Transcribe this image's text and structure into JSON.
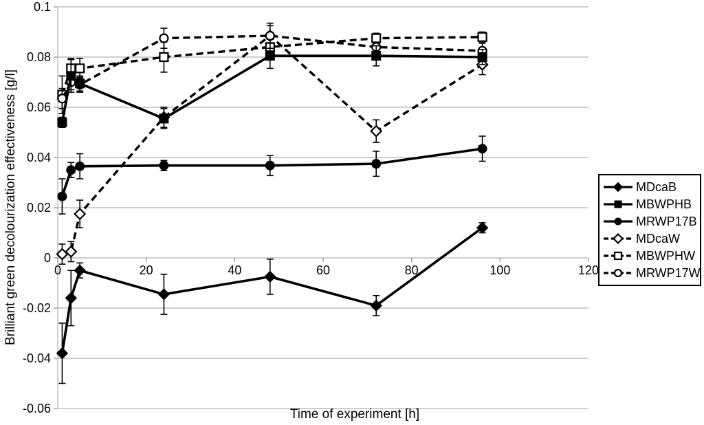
{
  "chart_data": {
    "type": "line",
    "title": "",
    "xlabel": "Time of experiment [h]",
    "ylabel": "Brilliant green decolourization effectiveness [g/l]",
    "xlim": [
      0,
      120
    ],
    "ylim": [
      -0.06,
      0.1
    ],
    "x_ticks": [
      0,
      20,
      40,
      60,
      80,
      100,
      120
    ],
    "x_tick_labels": [
      "0",
      "20",
      "40",
      "60",
      "80",
      "100",
      "120"
    ],
    "y_ticks": [
      0.1,
      0.08,
      0.06,
      0.04,
      0.02,
      0,
      -0.02,
      -0.04,
      -0.06
    ],
    "y_tick_labels": [
      "0.1",
      "0.08",
      "0.06",
      "0.04",
      "0.02",
      "0",
      "-0.02",
      "-0.04",
      "-0.06"
    ],
    "grid": "horizontal",
    "legend_position": "right",
    "error_bars": true,
    "x": [
      1,
      3,
      5,
      24,
      48,
      72,
      96
    ],
    "series": [
      {
        "name": "MDcaB",
        "style": "solid",
        "marker": "diamond",
        "marker_fill": "filled",
        "values": [
          -0.038,
          -0.016,
          -0.005,
          -0.0145,
          -0.0075,
          -0.019,
          0.012
        ],
        "errors": [
          0.012,
          0.011,
          0.003,
          0.008,
          0.007,
          0.004,
          0.002
        ]
      },
      {
        "name": "MBWPHB",
        "style": "solid",
        "marker": "square",
        "marker_fill": "filled",
        "values": [
          0.054,
          0.0725,
          0.0695,
          0.0555,
          0.0805,
          0.0805,
          0.08
        ],
        "errors": [
          0.002,
          0.0065,
          0.003,
          0.004,
          0.005,
          0.004,
          0.003
        ]
      },
      {
        "name": "MRWP17B",
        "style": "solid",
        "marker": "circle",
        "marker_fill": "filled",
        "values": [
          0.0245,
          0.035,
          0.0365,
          0.0368,
          0.0368,
          0.0375,
          0.0435
        ],
        "errors": [
          0.007,
          0.003,
          0.005,
          0.002,
          0.004,
          0.005,
          0.005
        ]
      },
      {
        "name": "MDcaW",
        "style": "dashed",
        "marker": "diamond",
        "marker_fill": "open",
        "values": [
          0.0015,
          0.0025,
          0.0175,
          0.056,
          0.0885,
          0.0505,
          0.077
        ],
        "errors": [
          0.004,
          0.004,
          0.0055,
          0.004,
          0.004,
          0.0045,
          0.004
        ]
      },
      {
        "name": "MBWPHW",
        "style": "dashed",
        "marker": "square",
        "marker_fill": "open",
        "values": [
          0.065,
          0.0755,
          0.0755,
          0.08,
          0.084,
          0.0875,
          0.088
        ],
        "errors": [
          0.0075,
          0.004,
          0.004,
          0.006,
          0.003,
          0.002,
          0.002
        ]
      },
      {
        "name": "MRWP17W",
        "style": "dashed",
        "marker": "circle",
        "marker_fill": "open",
        "values": [
          0.0635,
          0.07,
          0.069,
          0.0875,
          0.0885,
          0.084,
          0.0825
        ],
        "errors": [
          0.004,
          0.003,
          0.003,
          0.004,
          0.005,
          0.002,
          0.003
        ]
      }
    ]
  },
  "colors": {
    "series": "#000000",
    "grid": "#b0b0b0",
    "axis": "#888888",
    "text": "#000000",
    "background": "#ffffff"
  }
}
